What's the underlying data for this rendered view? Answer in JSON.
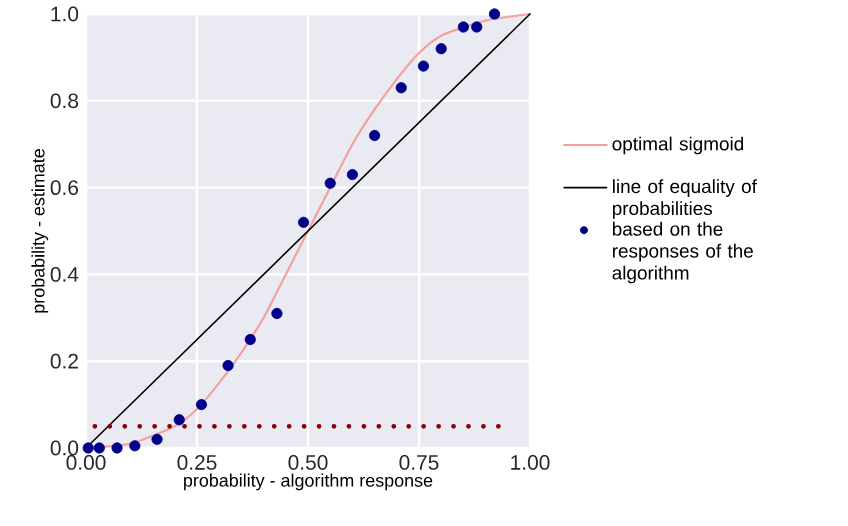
{
  "chart_data": {
    "type": "line",
    "xlabel": "probability - algorithm response",
    "ylabel": "probability - estimate",
    "xlim": [
      0,
      1
    ],
    "ylim": [
      0,
      1
    ],
    "xticks": [
      {
        "value": 0,
        "label": "0.00"
      },
      {
        "value": 0.25,
        "label": "0.25"
      },
      {
        "value": 0.5,
        "label": "0.50"
      },
      {
        "value": 0.75,
        "label": "0.75"
      },
      {
        "value": 1,
        "label": "1.00"
      }
    ],
    "yticks": [
      {
        "value": 0,
        "label": "0.0"
      },
      {
        "value": 0.2,
        "label": "0.2"
      },
      {
        "value": 0.4,
        "label": "0.4"
      },
      {
        "value": 0.6,
        "label": "0.6"
      },
      {
        "value": 0.8,
        "label": "0.8"
      },
      {
        "value": 1,
        "label": "1.0"
      }
    ],
    "grid": true,
    "legend": "right",
    "series": [
      {
        "name": "optimal sigmoid",
        "color": "#f4a0a0",
        "line_style": "solid",
        "marker": "none",
        "x": [
          0,
          0.1,
          0.2,
          0.25,
          0.3,
          0.35,
          0.4,
          0.45,
          0.5,
          0.55,
          0.6,
          0.65,
          0.7,
          0.75,
          0.8,
          0.9,
          1.0
        ],
        "values": [
          0,
          0.01,
          0.05,
          0.09,
          0.15,
          0.22,
          0.3,
          0.4,
          0.5,
          0.6,
          0.7,
          0.78,
          0.85,
          0.91,
          0.95,
          0.985,
          1.0
        ]
      },
      {
        "name": "line of equality of probabilities",
        "color": "#000000",
        "line_style": "solid",
        "marker": "none",
        "x": [
          0,
          1
        ],
        "values": [
          0,
          1
        ]
      },
      {
        "name": "based on the responses of the algorithm",
        "type": "scatter",
        "color": "#00008b",
        "marker": "circle",
        "x": [
          0.005,
          0.03,
          0.07,
          0.11,
          0.16,
          0.21,
          0.26,
          0.32,
          0.37,
          0.43,
          0.49,
          0.55,
          0.6,
          0.65,
          0.71,
          0.76,
          0.8,
          0.85,
          0.88,
          0.92
        ],
        "values": [
          0,
          0,
          0,
          0.005,
          0.02,
          0.065,
          0.1,
          0.19,
          0.25,
          0.31,
          0.52,
          0.61,
          0.63,
          0.72,
          0.83,
          0.88,
          0.92,
          0.97,
          0.97,
          1.0
        ]
      },
      {
        "color": "#8b0000",
        "line_style": "dotted",
        "marker": "none",
        "x": [
          0.02,
          0.93
        ],
        "values": [
          0.05,
          0.05
        ]
      }
    ]
  }
}
